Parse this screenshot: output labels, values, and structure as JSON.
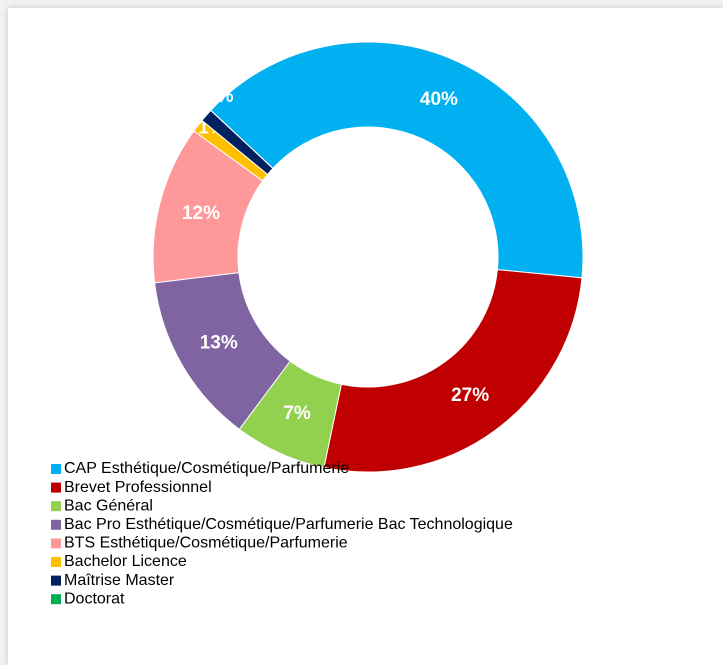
{
  "chart_data": {
    "type": "donut",
    "categories": [
      "CAP Esthétique/Cosmétique/Parfumerie",
      "Brevet Professionnel",
      "Bac Général",
      "Bac Pro Esthétique/Cosmétique/Parfumerie Bac Technologique",
      "BTS Esthétique/Cosmétique/Parfumerie",
      "Bachelor Licence",
      "Maîtrise Master",
      "Doctorat"
    ],
    "values": [
      40,
      27,
      7,
      13,
      12,
      1,
      1,
      0
    ],
    "value_labels": [
      "40%",
      "27%",
      "7%",
      "13%",
      "12%",
      "1%",
      "1%",
      null
    ],
    "colors": [
      "#00b0f0",
      "#c00000",
      "#92d050",
      "#8064a2",
      "#ff9999",
      "#ffc000",
      "#002060",
      "#00b050"
    ],
    "legend": "bottom"
  }
}
